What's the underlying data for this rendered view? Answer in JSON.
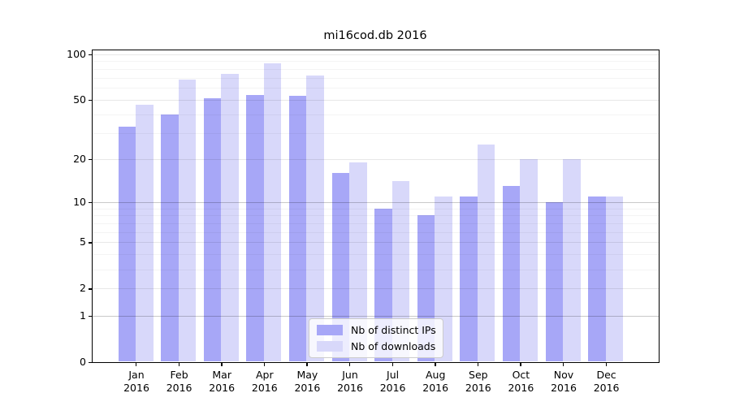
{
  "chart_data": {
    "type": "bar",
    "title": "mi16cod.db 2016",
    "categories": [
      "Jan",
      "Feb",
      "Mar",
      "Apr",
      "May",
      "Jun",
      "Jul",
      "Aug",
      "Sep",
      "Oct",
      "Nov",
      "Dec"
    ],
    "xtick_year": "2016",
    "series": [
      {
        "name": "Nb of distinct IPs",
        "color": "#a7a7f7",
        "values": [
          33,
          40,
          51,
          54,
          53,
          16,
          9,
          8,
          11,
          13,
          10,
          11
        ]
      },
      {
        "name": "Nb of downloads",
        "color": "#d8d8fa",
        "values": [
          46,
          68,
          74,
          87,
          72,
          19,
          14,
          11,
          25,
          20,
          20,
          11
        ]
      }
    ],
    "yscale": "log1p",
    "ylim": [
      0,
      106
    ],
    "yticks": [
      0,
      1,
      2,
      5,
      10,
      20,
      50,
      100
    ],
    "major_gridlines": [
      1,
      10
    ],
    "light_gridlines": [
      2,
      5,
      20,
      50,
      100
    ],
    "minor_gridlines": [
      3,
      4,
      6,
      7,
      8,
      9,
      30,
      40,
      60,
      70,
      80,
      90
    ],
    "grid": true,
    "legend_position": "lower center",
    "colors": {
      "major_grid": "rgba(0,0,0,0.21)",
      "light_grid": "rgba(0,0,0,0.09)",
      "minor_grid": "rgba(0,0,0,0.045)",
      "axis": "#000000",
      "text": "#000000"
    }
  }
}
